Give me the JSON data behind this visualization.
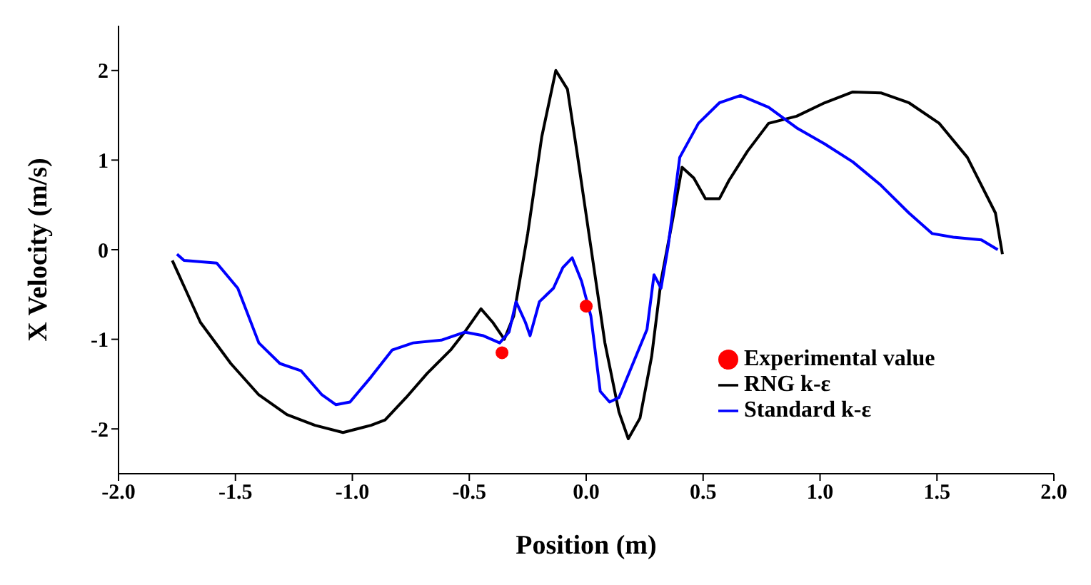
{
  "chart_data": {
    "type": "line",
    "xlabel": "Position (m)",
    "ylabel": "X Velocity (m/s)",
    "xlim": [
      -2,
      2
    ],
    "ylim": [
      -2.5,
      2.5
    ],
    "xticks": [
      {
        "value": -2,
        "label": "-2.0"
      },
      {
        "value": -1.5,
        "label": "-1.5"
      },
      {
        "value": -1,
        "label": "-1.0"
      },
      {
        "value": -0.5,
        "label": "-0.5"
      },
      {
        "value": 0,
        "label": "0.0"
      },
      {
        "value": 0.5,
        "label": "0.5"
      },
      {
        "value": 1,
        "label": "1.0"
      },
      {
        "value": 1.5,
        "label": "1.5"
      },
      {
        "value": 2,
        "label": "2.0"
      }
    ],
    "yticks": [
      -2,
      -1,
      0,
      1,
      2
    ],
    "legend": "bottom right",
    "line_style": "solid",
    "series": [
      {
        "name": "Experimental value",
        "type": "scatter",
        "marker": "circle",
        "color": "#ff0000",
        "x": [
          -0.36,
          0.0
        ],
        "values": [
          -1.15,
          -0.63
        ]
      },
      {
        "name": "RNG k-ε",
        "marker": "none",
        "color": "#000000",
        "x": [
          -1.77,
          -1.65,
          -1.52,
          -1.4,
          -1.28,
          -1.16,
          -1.04,
          -0.92,
          -0.86,
          -0.77,
          -0.68,
          -0.58,
          -0.52,
          -0.45,
          -0.4,
          -0.35,
          -0.31,
          -0.25,
          -0.19,
          -0.13,
          -0.08,
          -0.04,
          0.02,
          0.08,
          0.14,
          0.18,
          0.23,
          0.28,
          0.32,
          0.37,
          0.41,
          0.46,
          0.51,
          0.57,
          0.61,
          0.69,
          0.78,
          0.9,
          1.02,
          1.14,
          1.26,
          1.38,
          1.51,
          1.63,
          1.75,
          1.78
        ],
        "values": [
          -0.12,
          -0.81,
          -1.27,
          -1.62,
          -1.84,
          -1.96,
          -2.04,
          -1.96,
          -1.9,
          -1.65,
          -1.38,
          -1.12,
          -0.92,
          -0.66,
          -0.81,
          -1.0,
          -0.74,
          0.18,
          1.26,
          2.0,
          1.79,
          1.1,
          0.03,
          -1.04,
          -1.81,
          -2.11,
          -1.88,
          -1.19,
          -0.35,
          0.34,
          0.92,
          0.8,
          0.57,
          0.57,
          0.77,
          1.1,
          1.41,
          1.49,
          1.64,
          1.76,
          1.75,
          1.64,
          1.41,
          1.03,
          0.41,
          -0.05
        ]
      },
      {
        "name": "Standard k-ε",
        "marker": "none",
        "color": "#0000ff",
        "x": [
          -1.75,
          -1.72,
          -1.58,
          -1.49,
          -1.4,
          -1.31,
          -1.22,
          -1.13,
          -1.07,
          -1.01,
          -0.92,
          -0.83,
          -0.74,
          -0.62,
          -0.52,
          -0.44,
          -0.37,
          -0.33,
          -0.3,
          -0.26,
          -0.24,
          -0.2,
          -0.14,
          -0.1,
          -0.06,
          -0.02,
          0.02,
          0.06,
          0.1,
          0.14,
          0.2,
          0.26,
          0.29,
          0.32,
          0.35,
          0.4,
          0.48,
          0.57,
          0.66,
          0.78,
          0.9,
          1.02,
          1.14,
          1.26,
          1.38,
          1.48,
          1.57,
          1.69,
          1.76
        ],
        "values": [
          -0.05,
          -0.12,
          -0.15,
          -0.43,
          -1.04,
          -1.27,
          -1.35,
          -1.62,
          -1.73,
          -1.7,
          -1.42,
          -1.12,
          -1.04,
          -1.01,
          -0.92,
          -0.96,
          -1.04,
          -0.92,
          -0.58,
          -0.81,
          -0.96,
          -0.58,
          -0.43,
          -0.2,
          -0.09,
          -0.35,
          -0.74,
          -1.58,
          -1.7,
          -1.65,
          -1.27,
          -0.89,
          -0.28,
          -0.43,
          0.03,
          1.03,
          1.41,
          1.64,
          1.72,
          1.59,
          1.36,
          1.18,
          0.98,
          0.72,
          0.41,
          0.18,
          0.14,
          0.11,
          0.0
        ]
      }
    ]
  }
}
